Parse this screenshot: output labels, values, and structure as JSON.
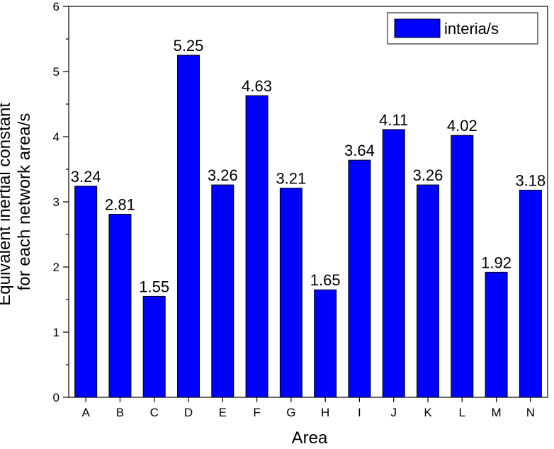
{
  "chart_data": {
    "type": "bar",
    "categories": [
      "A",
      "B",
      "C",
      "D",
      "E",
      "F",
      "G",
      "H",
      "I",
      "J",
      "K",
      "L",
      "M",
      "N"
    ],
    "series": [
      {
        "name": "interia/s",
        "values": [
          3.24,
          2.81,
          1.55,
          5.25,
          3.26,
          4.63,
          3.21,
          1.65,
          3.64,
          4.11,
          3.26,
          4.02,
          1.92,
          3.18
        ],
        "color": "#0000ff"
      }
    ],
    "data_labels": [
      "3.24",
      "2.81",
      "1.55",
      "5.25",
      "3.26",
      "4.63",
      "3.21",
      "1.65",
      "3.64",
      "4.11",
      "3.26",
      "4.02",
      "1.92",
      "3.18"
    ],
    "xlabel": "Area",
    "ylabel": [
      "Equivalent inertial constant",
      "for each network area/s"
    ],
    "ylim": [
      0,
      6
    ],
    "yticks": [
      0,
      1,
      2,
      3,
      4,
      5,
      6
    ],
    "grid": false,
    "legend_position": "top-right"
  }
}
